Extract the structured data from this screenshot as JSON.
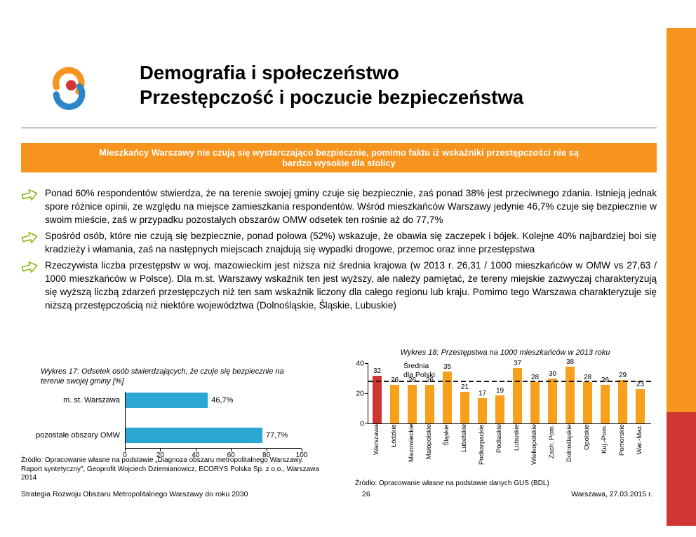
{
  "colors": {
    "orange": "#F7941E",
    "red": "#CF3531",
    "cyan": "#2BA7D4",
    "logo_blue": "#2B86C8",
    "arrow_green": "#8CB80F"
  },
  "header": {
    "title_line1": "Demografia i społeczeństwo",
    "title_line2": "Przestępczość i poczucie bezpieczeństwa"
  },
  "banner_text": "Mieszkańcy Warszawy nie czują się wystarczająco bezpiecznie, pomimo faktu iż wskaźniki przestępczości nie są bardzo wysokie dla stolicy",
  "bullets": [
    "Ponad 60% respondentów stwierdza, że na terenie swojej gminy czuje się bezpiecznie, zaś ponad 38% jest przeciwnego zdania. Istnieją jednak spore różnice opinii, ze względu na miejsce zamieszkania respondentów. Wśród mieszkańców Warszawy jedynie 46,7% czuje się bezpiecznie w swoim mieście, zaś w przypadku pozostałych obszarów OMW odsetek ten rośnie aż do 77,7%",
    "Spośród osób, które nie czują się bezpiecznie, ponad połowa (52%) wskazuje, że obawia się zaczepek i bójek. Kolejne 40% najbardziej boi się kradzieży i włamania, zaś na następnych miejscach znajdują się wypadki drogowe, przemoc oraz inne przestępstwa",
    "Rzeczywista liczba przestępstw w woj. mazowieckim jest niższa niż średnia krajowa (w 2013 r. 26,31 / 1000 mieszkańców w OMW vs 27,63 / 1000 mieszkańców w Polsce). Dla m.st. Warszawy wskaźnik ten jest wyższy, ale należy pamiętać, że tereny miejskie zazwyczaj charakteryzują się wyższą liczbą zdarzeń przestępczych niż ten sam wskaźnik liczony dla całego regionu lub kraju. Pomimo tego Warszawa charakteryzuje się niższą przestępczością niż niektóre województwa (Dolnośląskie, Śląskie, Lubuskie)"
  ],
  "chart_data": [
    {
      "type": "bar",
      "orientation": "horizontal",
      "title": "Wykres 17: Odsetek osób stwierdzających, że czuje się bezpiecznie na terenie swojej gminy [%]",
      "categories": [
        "m. st. Warszawa",
        "pozostałe obszary OMW"
      ],
      "values": [
        46.7,
        77.7
      ],
      "value_labels": [
        "46,7%",
        "77,7%"
      ],
      "xlim": [
        0,
        100
      ],
      "x_ticks": [
        0,
        20,
        40,
        60,
        80,
        100
      ],
      "bar_color": "#2BA7D4",
      "grid": false,
      "source": "Źródło: Opracowanie własne na podstawie „Diagnoza obszaru metropolitalnego Warszawy. Raport syntetyczny”, Geoprofit Wojciech Dziemianowicz, ECORYS Polska Sp. z o.o., Warszawa 2014"
    },
    {
      "type": "bar",
      "orientation": "vertical",
      "title": "Wykres 18: Przestępstwa na 1000 mieszkańców w 2013 roku",
      "categories": [
        "Warszawa",
        "Łódzkie",
        "Mazowieckie",
        "Małopolskie",
        "Śląskie",
        "Lubelskie",
        "Podkarpackie",
        "Podlaskie",
        "Lubuskie",
        "Wielkopolskie",
        "Zach. Pom.",
        "Dolnośląskie",
        "Opolskie",
        "Kuj.-Pom.",
        "Pomorskie",
        "War.-Maz."
      ],
      "values": [
        32,
        26,
        26,
        26,
        35,
        21,
        17,
        19,
        37,
        28,
        30,
        38,
        28,
        26,
        29,
        23
      ],
      "ylim": [
        0,
        40
      ],
      "y_ticks": [
        0,
        20,
        40
      ],
      "bar_color": "#F7A01B",
      "highlight_index": 0,
      "highlight_color": "#CF3531",
      "average_line": {
        "value": 27.63,
        "label": "Średnia\ndla Polski"
      },
      "grid": false,
      "legend": "none",
      "source": "Źródło: Opracowanie własne na podstawie danych GUS (BDL)"
    }
  ],
  "footer": {
    "strategy_text": "Strategia Rozwoju Obszaru Metropolitalnego Warszawy do roku 2030",
    "page_number": "26",
    "date_text": "Warszawa, 27.03.2015 r."
  }
}
